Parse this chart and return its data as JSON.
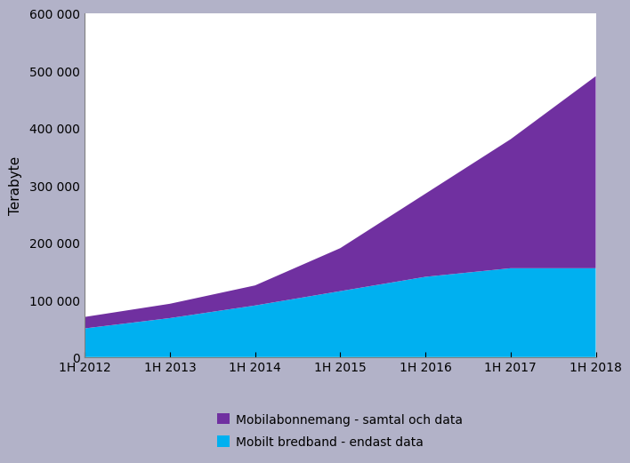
{
  "x_labels": [
    "1H 2012",
    "1H 2013",
    "1H 2014",
    "1H 2015",
    "1H 2016",
    "1H 2017",
    "1H 2018"
  ],
  "cyan_values": [
    50000,
    68000,
    90000,
    115000,
    140000,
    155000,
    155000
  ],
  "purple_values": [
    20000,
    25000,
    35000,
    75000,
    145000,
    225000,
    335000
  ],
  "cyan_color": "#00B0F0",
  "purple_color": "#7030A0",
  "background_color": "#B2B2C8",
  "plot_bg_color": "#FFFFFF",
  "ylabel": "Terabyte",
  "ylim": [
    0,
    600000
  ],
  "yticks": [
    0,
    100000,
    200000,
    300000,
    400000,
    500000,
    600000
  ],
  "legend_label_purple": "Mobilabonnemang - samtal och data",
  "legend_label_cyan": "Mobilt bredband - endast data",
  "axis_fontsize": 10,
  "ylabel_fontsize": 11,
  "legend_fontsize": 10
}
